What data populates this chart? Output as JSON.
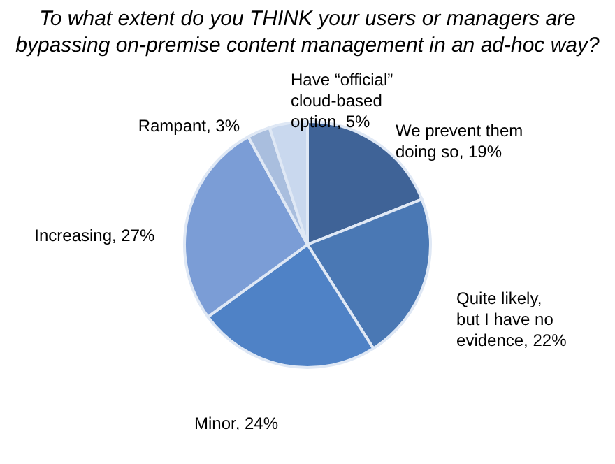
{
  "chart_data": {
    "type": "pie",
    "title": "To what extent do you THINK your users or managers are bypassing on-premise content management in an ad-hoc way?",
    "categories": [
      "We prevent them doing so",
      "Quite likely, but I have no evidence",
      "Minor",
      "Increasing",
      "Rampant",
      "Have “official” cloud-based option"
    ],
    "values": [
      19,
      22,
      24,
      27,
      3,
      5
    ],
    "value_labels": [
      "19%",
      "22%",
      "24%",
      "27%",
      "3%",
      "5%"
    ],
    "colors": [
      "#3f6397",
      "#4a78b4",
      "#4f82c6",
      "#7b9dd6",
      "#a9bede",
      "#c9d8ee"
    ]
  }
}
